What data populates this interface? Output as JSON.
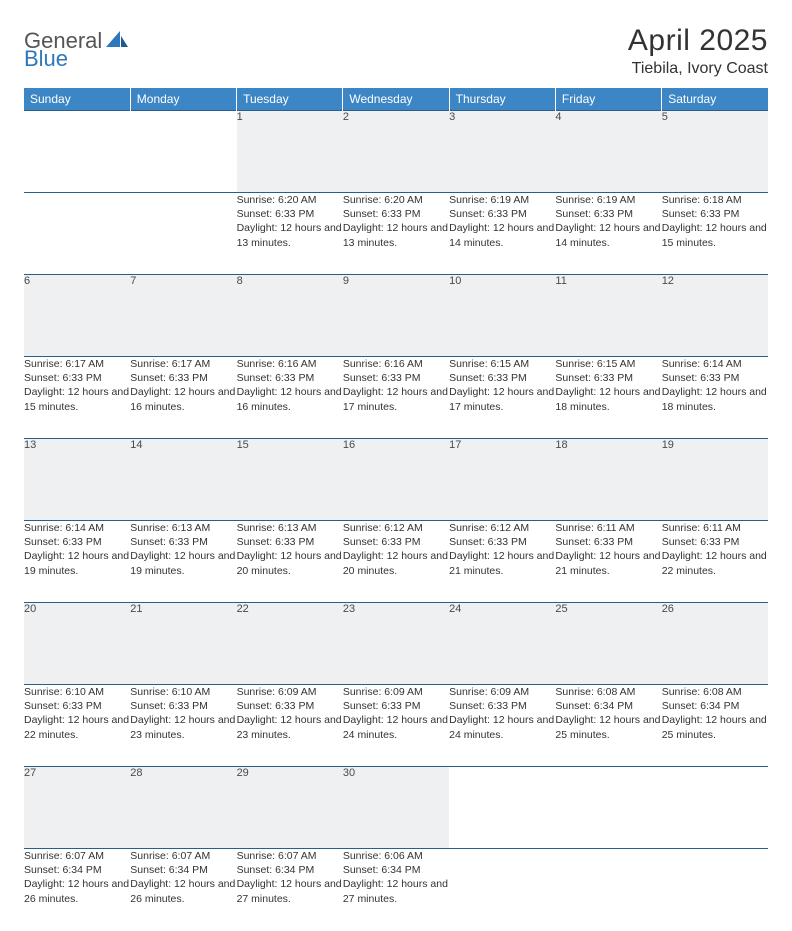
{
  "logo": {
    "part1": "General",
    "part2": "Blue"
  },
  "title": "April 2025",
  "location": "Tiebila, Ivory Coast",
  "colors": {
    "header_bg": "#3d86c6",
    "header_text": "#ffffff",
    "row_border": "#2b5d8a",
    "daynum_bg": "#eef0f2",
    "logo_accent": "#2f77bb"
  },
  "dayHeaders": [
    "Sunday",
    "Monday",
    "Tuesday",
    "Wednesday",
    "Thursday",
    "Friday",
    "Saturday"
  ],
  "weeks": [
    [
      null,
      null,
      {
        "n": "1",
        "sr": "6:20 AM",
        "ss": "6:33 PM",
        "dl": "12 hours and 13 minutes."
      },
      {
        "n": "2",
        "sr": "6:20 AM",
        "ss": "6:33 PM",
        "dl": "12 hours and 13 minutes."
      },
      {
        "n": "3",
        "sr": "6:19 AM",
        "ss": "6:33 PM",
        "dl": "12 hours and 14 minutes."
      },
      {
        "n": "4",
        "sr": "6:19 AM",
        "ss": "6:33 PM",
        "dl": "12 hours and 14 minutes."
      },
      {
        "n": "5",
        "sr": "6:18 AM",
        "ss": "6:33 PM",
        "dl": "12 hours and 15 minutes."
      }
    ],
    [
      {
        "n": "6",
        "sr": "6:17 AM",
        "ss": "6:33 PM",
        "dl": "12 hours and 15 minutes."
      },
      {
        "n": "7",
        "sr": "6:17 AM",
        "ss": "6:33 PM",
        "dl": "12 hours and 16 minutes."
      },
      {
        "n": "8",
        "sr": "6:16 AM",
        "ss": "6:33 PM",
        "dl": "12 hours and 16 minutes."
      },
      {
        "n": "9",
        "sr": "6:16 AM",
        "ss": "6:33 PM",
        "dl": "12 hours and 17 minutes."
      },
      {
        "n": "10",
        "sr": "6:15 AM",
        "ss": "6:33 PM",
        "dl": "12 hours and 17 minutes."
      },
      {
        "n": "11",
        "sr": "6:15 AM",
        "ss": "6:33 PM",
        "dl": "12 hours and 18 minutes."
      },
      {
        "n": "12",
        "sr": "6:14 AM",
        "ss": "6:33 PM",
        "dl": "12 hours and 18 minutes."
      }
    ],
    [
      {
        "n": "13",
        "sr": "6:14 AM",
        "ss": "6:33 PM",
        "dl": "12 hours and 19 minutes."
      },
      {
        "n": "14",
        "sr": "6:13 AM",
        "ss": "6:33 PM",
        "dl": "12 hours and 19 minutes."
      },
      {
        "n": "15",
        "sr": "6:13 AM",
        "ss": "6:33 PM",
        "dl": "12 hours and 20 minutes."
      },
      {
        "n": "16",
        "sr": "6:12 AM",
        "ss": "6:33 PM",
        "dl": "12 hours and 20 minutes."
      },
      {
        "n": "17",
        "sr": "6:12 AM",
        "ss": "6:33 PM",
        "dl": "12 hours and 21 minutes."
      },
      {
        "n": "18",
        "sr": "6:11 AM",
        "ss": "6:33 PM",
        "dl": "12 hours and 21 minutes."
      },
      {
        "n": "19",
        "sr": "6:11 AM",
        "ss": "6:33 PM",
        "dl": "12 hours and 22 minutes."
      }
    ],
    [
      {
        "n": "20",
        "sr": "6:10 AM",
        "ss": "6:33 PM",
        "dl": "12 hours and 22 minutes."
      },
      {
        "n": "21",
        "sr": "6:10 AM",
        "ss": "6:33 PM",
        "dl": "12 hours and 23 minutes."
      },
      {
        "n": "22",
        "sr": "6:09 AM",
        "ss": "6:33 PM",
        "dl": "12 hours and 23 minutes."
      },
      {
        "n": "23",
        "sr": "6:09 AM",
        "ss": "6:33 PM",
        "dl": "12 hours and 24 minutes."
      },
      {
        "n": "24",
        "sr": "6:09 AM",
        "ss": "6:33 PM",
        "dl": "12 hours and 24 minutes."
      },
      {
        "n": "25",
        "sr": "6:08 AM",
        "ss": "6:34 PM",
        "dl": "12 hours and 25 minutes."
      },
      {
        "n": "26",
        "sr": "6:08 AM",
        "ss": "6:34 PM",
        "dl": "12 hours and 25 minutes."
      }
    ],
    [
      {
        "n": "27",
        "sr": "6:07 AM",
        "ss": "6:34 PM",
        "dl": "12 hours and 26 minutes."
      },
      {
        "n": "28",
        "sr": "6:07 AM",
        "ss": "6:34 PM",
        "dl": "12 hours and 26 minutes."
      },
      {
        "n": "29",
        "sr": "6:07 AM",
        "ss": "6:34 PM",
        "dl": "12 hours and 27 minutes."
      },
      {
        "n": "30",
        "sr": "6:06 AM",
        "ss": "6:34 PM",
        "dl": "12 hours and 27 minutes."
      },
      null,
      null,
      null
    ]
  ],
  "labels": {
    "sunrise": "Sunrise: ",
    "sunset": "Sunset: ",
    "daylight": "Daylight: "
  }
}
